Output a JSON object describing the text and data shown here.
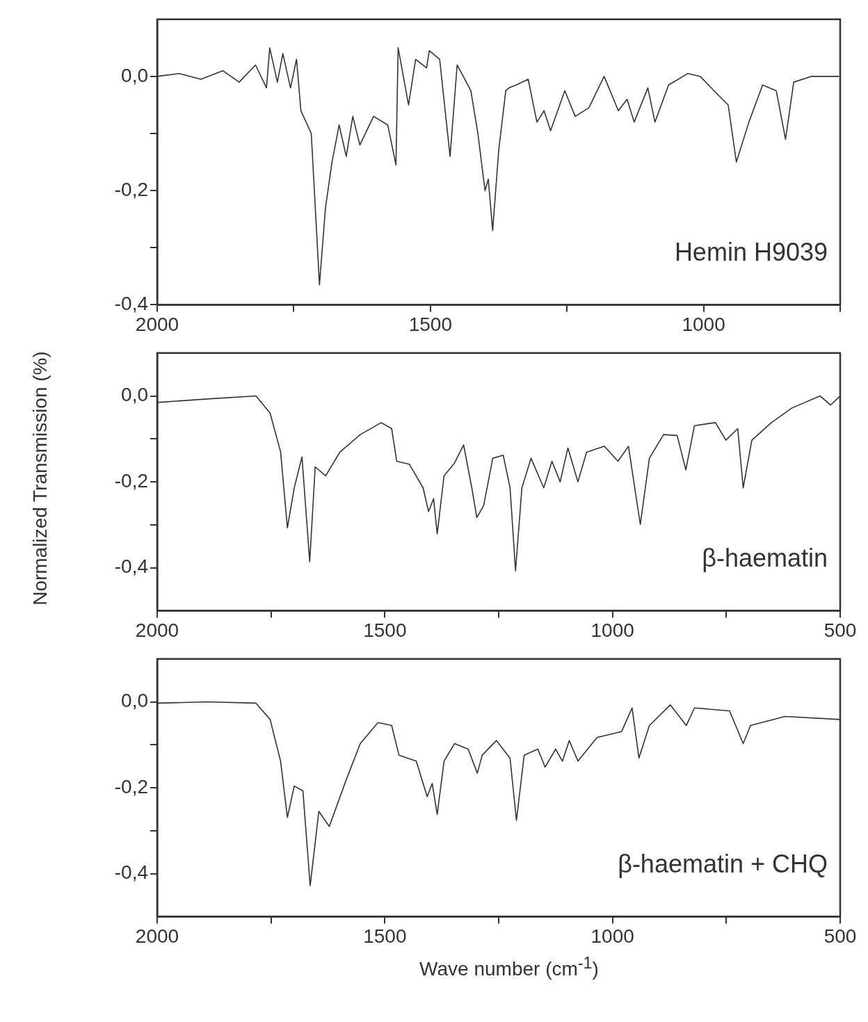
{
  "chart_data": [
    {
      "type": "line",
      "annotations": [
        "Hemin H9039"
      ],
      "marker": "none",
      "grid": false,
      "legend": false,
      "xlim": [
        2000,
        750
      ],
      "xticks": [
        2000,
        {
          "value": 1750,
          "label": null
        },
        1500,
        {
          "value": 1250,
          "label": null
        },
        1000,
        {
          "value": 750,
          "label": null
        }
      ],
      "ylim": [
        -0.4,
        0.1
      ],
      "yticks": [
        {
          "value": 0,
          "label": "0,0"
        },
        {
          "value": -0.1,
          "label": null
        },
        {
          "value": -0.2,
          "label": "-0,2"
        },
        {
          "value": -0.3,
          "label": null
        },
        {
          "value": -0.4,
          "label": "-0,4"
        }
      ],
      "x": [
        2000,
        1960,
        1920,
        1880,
        1850,
        1820,
        1800,
        1794,
        1780,
        1770,
        1756,
        1745,
        1737,
        1718,
        1703,
        1692,
        1680,
        1667,
        1654,
        1642,
        1629,
        1604,
        1578,
        1563,
        1559,
        1540,
        1527,
        1507,
        1502,
        1483,
        1464,
        1451,
        1426,
        1413,
        1400,
        1394,
        1386,
        1375,
        1362,
        1356,
        1343,
        1321,
        1305,
        1292,
        1280,
        1254,
        1235,
        1210,
        1182,
        1156,
        1140,
        1127,
        1102,
        1089,
        1064,
        1029,
        1006,
        981,
        955,
        940,
        917,
        892,
        867,
        850,
        835,
        803,
        752
      ],
      "series": [
        {
          "color": "#333333",
          "values": [
            0.0,
            0.005,
            -0.005,
            0.01,
            -0.01,
            0.02,
            -0.02,
            0.05,
            -0.01,
            0.04,
            -0.02,
            0.03,
            -0.06,
            -0.1,
            -0.365,
            -0.23,
            -0.15,
            -0.085,
            -0.14,
            -0.07,
            -0.12,
            -0.07,
            -0.085,
            -0.155,
            0.05,
            -0.05,
            0.03,
            0.015,
            0.045,
            0.03,
            -0.14,
            0.02,
            -0.025,
            -0.1,
            -0.2,
            -0.18,
            -0.27,
            -0.13,
            -0.025,
            -0.02,
            -0.015,
            -0.005,
            -0.08,
            -0.06,
            -0.095,
            -0.025,
            -0.07,
            -0.055,
            0.0,
            -0.06,
            -0.04,
            -0.08,
            -0.02,
            -0.08,
            -0.015,
            0.005,
            0.0,
            -0.025,
            -0.05,
            -0.15,
            -0.08,
            -0.015,
            -0.025,
            -0.11,
            -0.01,
            0.0,
            0.0
          ]
        }
      ]
    },
    {
      "type": "line",
      "annotations": [
        "β-haematin"
      ],
      "ylabel": "Normalized Transmission (%)",
      "marker": "none",
      "grid": false,
      "legend": false,
      "xlim": [
        2000,
        500
      ],
      "xticks": [
        2000,
        {
          "value": 1750,
          "label": null
        },
        1500,
        {
          "value": 1250,
          "label": null
        },
        1000,
        {
          "value": 750,
          "label": null
        },
        500
      ],
      "ylim": [
        -0.5,
        0.1
      ],
      "yticks": [
        {
          "value": 0,
          "label": "0,0"
        },
        {
          "value": -0.1,
          "label": null
        },
        {
          "value": -0.2,
          "label": "-0,2"
        },
        {
          "value": -0.3,
          "label": null
        },
        {
          "value": -0.4,
          "label": "-0,4"
        }
      ],
      "x": [
        2000,
        1890,
        1783,
        1752,
        1729,
        1714,
        1699,
        1682,
        1665,
        1653,
        1630,
        1599,
        1554,
        1508,
        1485,
        1474,
        1446,
        1416,
        1404,
        1393,
        1385,
        1370,
        1347,
        1327,
        1309,
        1298,
        1283,
        1263,
        1240,
        1225,
        1213,
        1199,
        1179,
        1151,
        1133,
        1115,
        1098,
        1076,
        1057,
        1018,
        988,
        965,
        939,
        919,
        888,
        858,
        839,
        820,
        774,
        751,
        725,
        713,
        694,
        651,
        606,
        544,
        521,
        500
      ],
      "series": [
        {
          "color": "#333333",
          "values": [
            -0.015,
            -0.007,
            0.0,
            -0.04,
            -0.13,
            -0.307,
            -0.214,
            -0.142,
            -0.386,
            -0.165,
            -0.186,
            -0.131,
            -0.09,
            -0.062,
            -0.076,
            -0.152,
            -0.159,
            -0.214,
            -0.269,
            -0.239,
            -0.321,
            -0.186,
            -0.156,
            -0.114,
            -0.214,
            -0.283,
            -0.255,
            -0.145,
            -0.138,
            -0.214,
            -0.407,
            -0.214,
            -0.145,
            -0.214,
            -0.152,
            -0.2,
            -0.121,
            -0.2,
            -0.131,
            -0.117,
            -0.152,
            -0.117,
            -0.299,
            -0.145,
            -0.09,
            -0.092,
            -0.172,
            -0.069,
            -0.062,
            -0.103,
            -0.076,
            -0.214,
            -0.103,
            -0.062,
            -0.028,
            0.0,
            -0.021,
            0.0
          ]
        }
      ]
    },
    {
      "type": "line",
      "annotations": [
        "β-haematin + CHQ"
      ],
      "xlabel": "Wave number (cm$^{-1}$)",
      "marker": "none",
      "grid": false,
      "legend": false,
      "xlim": [
        2000,
        500
      ],
      "xticks": [
        2000,
        {
          "value": 1750,
          "label": null
        },
        1500,
        {
          "value": 1250,
          "label": null
        },
        1000,
        {
          "value": 750,
          "label": null
        },
        500
      ],
      "ylim": [
        -0.5,
        0.1
      ],
      "yticks": [
        {
          "value": 0,
          "label": "0,0"
        },
        {
          "value": -0.1,
          "label": null
        },
        {
          "value": -0.2,
          "label": "-0,2"
        },
        {
          "value": -0.3,
          "label": null
        },
        {
          "value": -0.4,
          "label": "-0,4"
        }
      ],
      "x": [
        2000,
        1890,
        1783,
        1752,
        1729,
        1714,
        1699,
        1680,
        1664,
        1645,
        1622,
        1584,
        1554,
        1515,
        1485,
        1469,
        1431,
        1407,
        1396,
        1385,
        1370,
        1347,
        1317,
        1297,
        1286,
        1255,
        1225,
        1211,
        1194,
        1164,
        1148,
        1125,
        1110,
        1095,
        1076,
        1034,
        980,
        957,
        942,
        919,
        873,
        838,
        820,
        743,
        713,
        697,
        621,
        500
      ],
      "series": [
        {
          "color": "#333333",
          "values": [
            -0.003,
            0.0,
            -0.003,
            -0.041,
            -0.138,
            -0.269,
            -0.196,
            -0.207,
            -0.428,
            -0.255,
            -0.29,
            -0.179,
            -0.097,
            -0.048,
            -0.055,
            -0.124,
            -0.138,
            -0.221,
            -0.19,
            -0.262,
            -0.138,
            -0.097,
            -0.11,
            -0.166,
            -0.124,
            -0.09,
            -0.131,
            -0.276,
            -0.124,
            -0.11,
            -0.152,
            -0.11,
            -0.138,
            -0.09,
            -0.138,
            -0.083,
            -0.069,
            -0.014,
            -0.131,
            -0.055,
            -0.007,
            -0.055,
            -0.014,
            -0.021,
            -0.097,
            -0.055,
            -0.034,
            -0.041
          ]
        }
      ]
    }
  ]
}
